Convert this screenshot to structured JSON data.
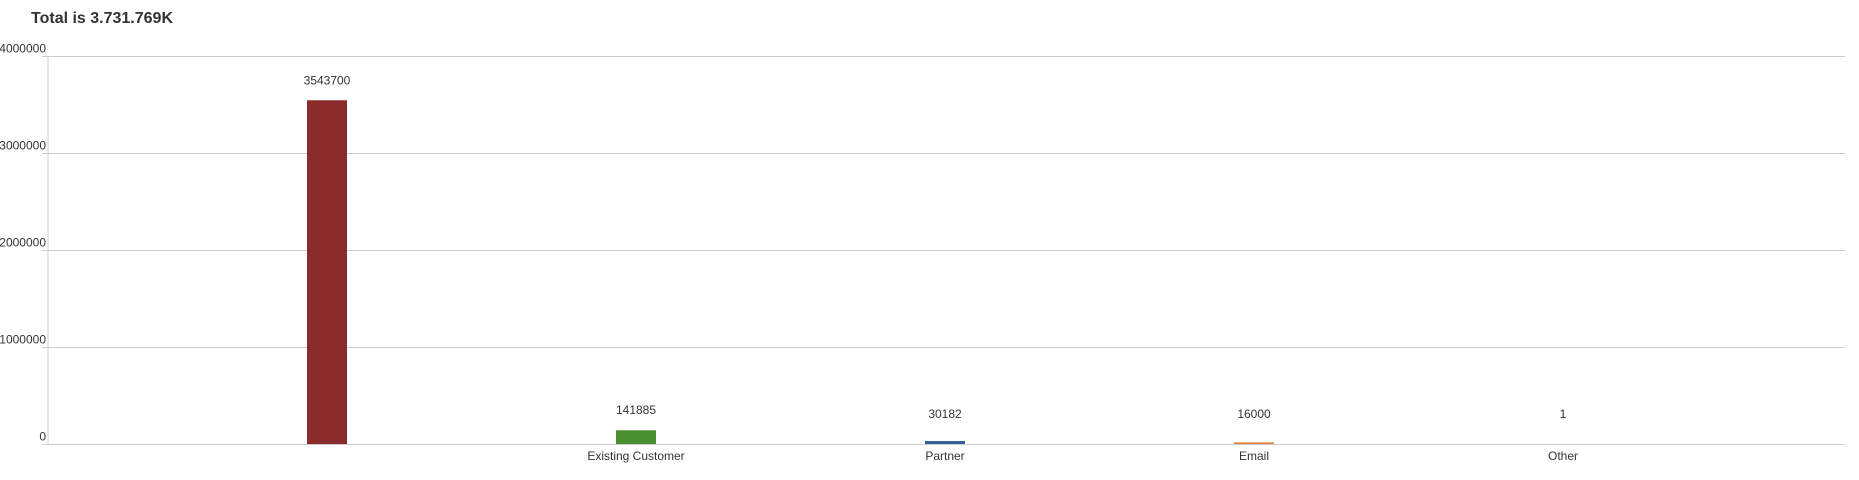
{
  "chart_data": {
    "type": "bar",
    "title": "Total is 3.731.769K",
    "xlabel": "",
    "ylabel": "",
    "ylim": [
      0,
      4000000
    ],
    "yticks": [
      "4000000",
      "3000000",
      "2000000",
      "1000000",
      "0"
    ],
    "ytick_values": [
      4000000,
      3000000,
      2000000,
      1000000,
      0
    ],
    "grid": true,
    "categories": [
      "",
      "Existing Customer",
      "Partner",
      "Email",
      "Other"
    ],
    "values": [
      3543700,
      141885,
      30182,
      16000,
      1
    ],
    "data_labels": [
      "3543700",
      "141885",
      "30182",
      "16000",
      "1"
    ],
    "colors": [
      "#8b2a2b",
      "#4a8f2e",
      "#2e5f93",
      "#e0772c",
      "#7a4a9a"
    ]
  }
}
